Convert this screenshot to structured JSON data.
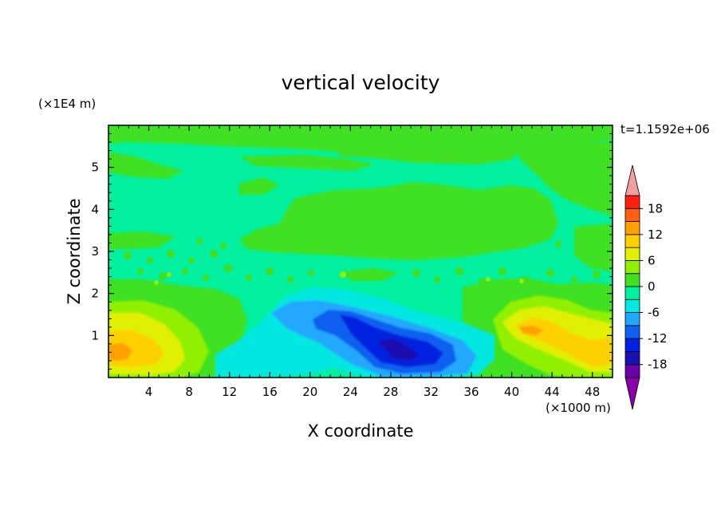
{
  "chart_data": {
    "type": "heatmap",
    "title": "vertical velocity",
    "xlabel": "X coordinate",
    "ylabel": "Z coordinate",
    "x_unit": "(×1000 m)",
    "y_unit": "(×1E4 m)",
    "time_label": "t=1.1592e+06",
    "xlim": [
      0,
      50
    ],
    "ylim": [
      0,
      6
    ],
    "x_ticks": [
      4,
      8,
      12,
      16,
      20,
      24,
      28,
      32,
      36,
      40,
      44,
      48
    ],
    "x_tick_labels": [
      "4",
      "8",
      "12",
      "16",
      "20",
      "24",
      "28",
      "32",
      "36",
      "40",
      "44",
      "48"
    ],
    "y_ticks": [
      1,
      2,
      3,
      4,
      5
    ],
    "y_tick_labels": [
      "1",
      "2",
      "3",
      "4",
      "5"
    ],
    "colorbar": {
      "levels": [
        -21,
        -18,
        -15,
        -12,
        -9,
        -6,
        -3,
        0,
        3,
        6,
        9,
        12,
        15,
        18,
        21
      ],
      "label_values": [
        -18,
        -12,
        -6,
        0,
        6,
        12,
        18
      ],
      "labels": [
        "-18",
        "-12",
        "-6",
        "0",
        "6",
        "12",
        "18"
      ],
      "colors": [
        "#6a00a8",
        "#1a10b0",
        "#0022e0",
        "#1060f0",
        "#20a8ff",
        "#00e8e0",
        "#00f0a0",
        "#40e020",
        "#90f000",
        "#e0f000",
        "#ffd000",
        "#ffa000",
        "#ff6010",
        "#ff2010",
        "#e01010"
      ],
      "under_color": "#8800aa",
      "over_color": "#f0a0a0"
    },
    "features": [
      {
        "kind": "background",
        "value": -1,
        "color": "#00f0a0"
      },
      {
        "kind": "updraft",
        "x": 2.5,
        "z": 0.8,
        "w": 7.5,
        "h": 0.9,
        "value": 9,
        "color": "#ffd000",
        "peak": 12
      },
      {
        "kind": "updraft",
        "x": 43,
        "z": 1.0,
        "w": 8.0,
        "h": 1.2,
        "value": 9,
        "color": "#ffd000",
        "peak": 12
      },
      {
        "kind": "downdraft",
        "x": 29,
        "z": 0.9,
        "w": 11.0,
        "h": 1.0,
        "value": -13,
        "color": "#0022e0",
        "peak": -15
      }
    ]
  }
}
